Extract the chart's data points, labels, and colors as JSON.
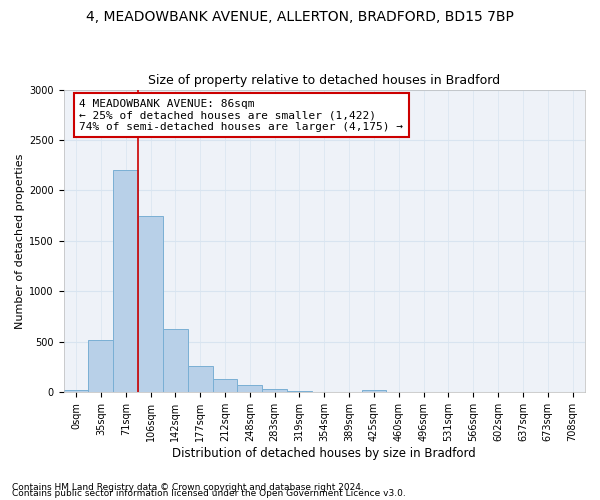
{
  "title1": "4, MEADOWBANK AVENUE, ALLERTON, BRADFORD, BD15 7BP",
  "title2": "Size of property relative to detached houses in Bradford",
  "xlabel": "Distribution of detached houses by size in Bradford",
  "ylabel": "Number of detached properties",
  "categories": [
    "0sqm",
    "35sqm",
    "71sqm",
    "106sqm",
    "142sqm",
    "177sqm",
    "212sqm",
    "248sqm",
    "283sqm",
    "319sqm",
    "354sqm",
    "389sqm",
    "425sqm",
    "460sqm",
    "496sqm",
    "531sqm",
    "566sqm",
    "602sqm",
    "637sqm",
    "673sqm",
    "708sqm"
  ],
  "values": [
    25,
    520,
    2200,
    1750,
    630,
    260,
    130,
    75,
    30,
    10,
    5,
    3,
    25,
    5,
    2,
    0,
    0,
    0,
    0,
    0,
    0
  ],
  "bar_color": "#b8d0e8",
  "bar_edge_color": "#7aafd4",
  "grid_color": "#d8e4f0",
  "bg_color": "#eef2f8",
  "red_line_x": 2.5,
  "red_line_color": "#cc0000",
  "annotation_text": "4 MEADOWBANK AVENUE: 86sqm\n← 25% of detached houses are smaller (1,422)\n74% of semi-detached houses are larger (4,175) →",
  "annotation_box_color": "#ffffff",
  "annotation_border_color": "#cc0000",
  "ylim": [
    0,
    3000
  ],
  "yticks": [
    0,
    500,
    1000,
    1500,
    2000,
    2500,
    3000
  ],
  "footer1": "Contains HM Land Registry data © Crown copyright and database right 2024.",
  "footer2": "Contains public sector information licensed under the Open Government Licence v3.0.",
  "title1_fontsize": 10,
  "title2_fontsize": 9,
  "xlabel_fontsize": 8.5,
  "ylabel_fontsize": 8,
  "tick_fontsize": 7,
  "annotation_fontsize": 8,
  "footer_fontsize": 6.5
}
